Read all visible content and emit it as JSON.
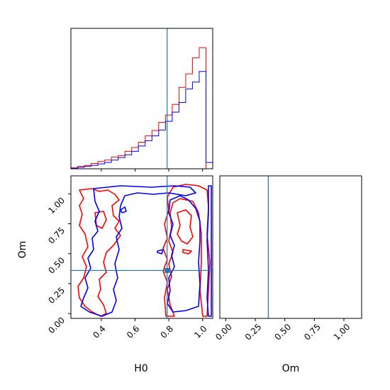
{
  "chart_data": {
    "type": "corner",
    "parameters": [
      "H0",
      "Om"
    ],
    "colors": {
      "series_a": "#ff0000",
      "series_b": "#0000ff",
      "truth": "#1f77b4"
    },
    "truth": {
      "H0": 0.79,
      "Om": 0.36
    },
    "panels": {
      "h0_hist": {
        "type": "histogram",
        "xlim": [
          0.22,
          1.06
        ],
        "bins": [
          0.22,
          0.26,
          0.3,
          0.34,
          0.38,
          0.42,
          0.46,
          0.5,
          0.54,
          0.58,
          0.62,
          0.66,
          0.7,
          0.74,
          0.78,
          0.82,
          0.86,
          0.9,
          0.94,
          0.98,
          1.02,
          1.06
        ],
        "series": [
          {
            "color": "red",
            "values": [
              2,
              5,
              7,
              11,
              15,
              18,
              24,
              27,
              36,
              44,
              55,
              68,
              79,
              96,
              111,
              133,
              168,
              196,
              229,
              250,
              0
            ]
          },
          {
            "color": "blue",
            "values": [
              1,
              3,
              5,
              7,
              10,
              13,
              18,
              23,
              29,
              36,
              47,
              58,
              68,
              80,
              98,
              117,
              137,
              165,
              179,
              201,
              13
            ]
          }
        ]
      },
      "om_hist": {
        "type": "histogram",
        "xlim": [
          -0.05,
          1.15
        ],
        "xticks": [
          "0.00",
          "0.25",
          "0.50",
          "0.75",
          "1.00"
        ],
        "xlabel": "Om",
        "bins": [
          -0.05,
          0.0,
          0.05,
          0.1,
          0.15,
          0.2,
          0.25,
          0.3,
          0.35,
          0.4,
          0.45,
          0.5,
          0.55,
          0.6,
          0.65,
          0.7,
          0.75,
          0.8,
          0.85,
          0.9,
          0.95,
          1.0,
          1.05,
          1.1,
          1.15
        ],
        "series": [
          {
            "color": "red",
            "values": [
              0,
              0,
              0,
              0,
              0,
              0,
              0,
              0,
              0,
              0,
              0,
              0,
              0,
              0,
              0,
              0,
              0,
              0,
              0,
              0,
              0,
              0,
              0,
              0
            ]
          },
          {
            "color": "blue",
            "values": [
              0,
              0,
              0,
              0,
              0,
              0,
              0,
              0,
              0,
              0,
              0,
              0,
              0,
              0,
              0,
              0,
              0,
              0,
              0,
              0,
              0,
              0,
              0,
              0
            ]
          }
        ]
      },
      "joint": {
        "type": "contour",
        "xlim": [
          0.22,
          1.06
        ],
        "ylim": [
          -0.04,
          1.15
        ],
        "xticks": [
          "0.4",
          "0.6",
          "0.8",
          "1.0"
        ],
        "yticks": [
          "0.00",
          "0.25",
          "0.50",
          "0.75",
          "1.00"
        ],
        "xlabel": "H0",
        "ylabel": "Om"
      }
    }
  }
}
